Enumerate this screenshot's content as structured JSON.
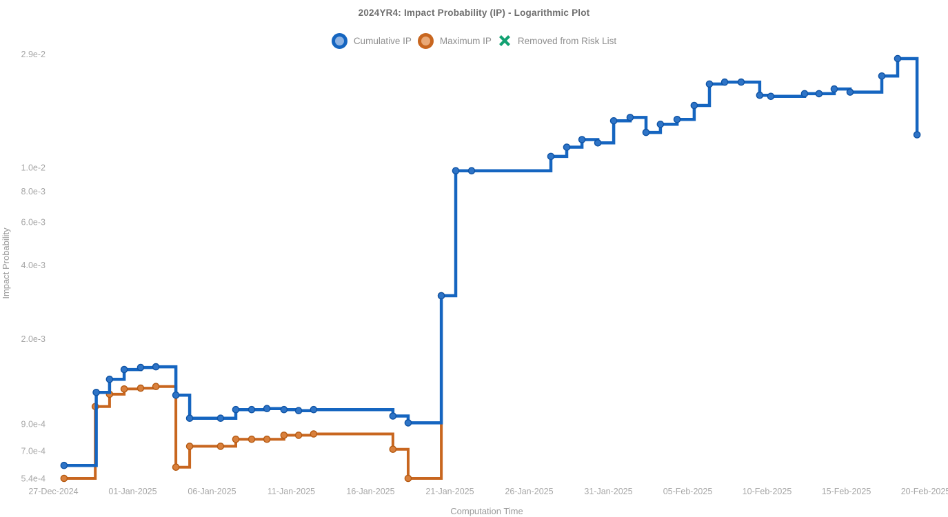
{
  "chart_data": {
    "type": "line",
    "title": "2024YR4: Impact Probability (IP) - Logarithmic Plot",
    "xlabel": "Computation Time",
    "ylabel": "Impact Probability",
    "yscale": "log",
    "step_style": "post",
    "grid": false,
    "background": "#ffffff",
    "ylim": [
      0.00054,
      0.029
    ],
    "legend_position": "top-center",
    "legend": [
      {
        "label": "Cumulative IP",
        "marker": "circle",
        "edge_color": "#1565c0",
        "fill_color": "#8fb3e2"
      },
      {
        "label": "Maximum IP",
        "marker": "circle",
        "edge_color": "#c8661f",
        "fill_color": "#e9a977"
      },
      {
        "label": "Removed from Risk List",
        "marker": "x",
        "edge_color": "#12a172",
        "fill_color": "#12a172"
      }
    ],
    "x_ticks": [
      {
        "label": "27-Dec-2024",
        "t": 0
      },
      {
        "label": "01-Jan-2025",
        "t": 5
      },
      {
        "label": "06-Jan-2025",
        "t": 10
      },
      {
        "label": "11-Jan-2025",
        "t": 15
      },
      {
        "label": "16-Jan-2025",
        "t": 20
      },
      {
        "label": "21-Jan-2025",
        "t": 25
      },
      {
        "label": "26-Jan-2025",
        "t": 30
      },
      {
        "label": "31-Jan-2025",
        "t": 35
      },
      {
        "label": "05-Feb-2025",
        "t": 40
      },
      {
        "label": "10-Feb-2025",
        "t": 45
      },
      {
        "label": "15-Feb-2025",
        "t": 50
      },
      {
        "label": "20-Feb-2025",
        "t": 55
      }
    ],
    "y_ticks": [
      {
        "label": "2.9e-2",
        "v": 0.029
      },
      {
        "label": "1.0e-2",
        "v": 0.01
      },
      {
        "label": "8.0e-3",
        "v": 0.008
      },
      {
        "label": "6.0e-3",
        "v": 0.006
      },
      {
        "label": "4.0e-3",
        "v": 0.004
      },
      {
        "label": "2.0e-3",
        "v": 0.002
      },
      {
        "label": "9.0e-4",
        "v": 0.0009
      },
      {
        "label": "7.0e-4",
        "v": 0.0007
      },
      {
        "label": "5.4e-4",
        "v": 0.00054
      }
    ],
    "series": [
      {
        "name": "Cumulative IP",
        "line_color": "#1565c0",
        "line_width": 4.5,
        "marker_fill": "#2e74c7",
        "marker_edge": "#0f53a4",
        "points": [
          {
            "date": "27-Dec-2024",
            "t": 0.67,
            "ip": 0.00061
          },
          {
            "date": "29-Dec-2024",
            "t": 2.7,
            "ip": 0.00121
          },
          {
            "date": "30-Dec-2024",
            "t": 3.54,
            "ip": 0.00137
          },
          {
            "date": "31-Dec-2024",
            "t": 4.46,
            "ip": 0.0015
          },
          {
            "date": "01-Jan-2025",
            "t": 5.5,
            "ip": 0.00153
          },
          {
            "date": "02-Jan-2025",
            "t": 6.46,
            "ip": 0.00154
          },
          {
            "date": "03-Jan-2025",
            "t": 7.72,
            "ip": 0.00118
          },
          {
            "date": "04-Jan-2025",
            "t": 8.59,
            "ip": 0.00095
          },
          {
            "date": "06-Jan-2025",
            "t": 10.54,
            "ip": 0.00095
          },
          {
            "date": "07-Jan-2025",
            "t": 11.5,
            "ip": 0.00103
          },
          {
            "date": "08-Jan-2025",
            "t": 12.5,
            "ip": 0.00103
          },
          {
            "date": "09-Jan-2025",
            "t": 13.46,
            "ip": 0.00104
          },
          {
            "date": "10-Jan-2025",
            "t": 14.54,
            "ip": 0.00103
          },
          {
            "date": "11-Jan-2025",
            "t": 15.46,
            "ip": 0.00102
          },
          {
            "date": "12-Jan-2025",
            "t": 16.41,
            "ip": 0.00103
          },
          {
            "date": "17-Jan-2025",
            "t": 21.41,
            "ip": 0.00097
          },
          {
            "date": "18-Jan-2025",
            "t": 22.37,
            "ip": 0.00091
          },
          {
            "date": "20-Jan-2025",
            "t": 24.46,
            "ip": 0.003
          },
          {
            "date": "21-Jan-2025",
            "t": 25.37,
            "ip": 0.0097
          },
          {
            "date": "22-Jan-2025",
            "t": 26.37,
            "ip": 0.0097
          },
          {
            "date": "27-Jan-2025",
            "t": 31.37,
            "ip": 0.0111
          },
          {
            "date": "28-Jan-2025",
            "t": 32.37,
            "ip": 0.0121
          },
          {
            "date": "29-Jan-2025",
            "t": 33.33,
            "ip": 0.013
          },
          {
            "date": "30-Jan-2025",
            "t": 34.33,
            "ip": 0.0126
          },
          {
            "date": "31-Jan-2025",
            "t": 35.33,
            "ip": 0.0155
          },
          {
            "date": "01-Feb-2025",
            "t": 36.37,
            "ip": 0.016
          },
          {
            "date": "02-Feb-2025",
            "t": 37.37,
            "ip": 0.0139
          },
          {
            "date": "03-Feb-2025",
            "t": 38.28,
            "ip": 0.015
          },
          {
            "date": "04-Feb-2025",
            "t": 39.33,
            "ip": 0.0157
          },
          {
            "date": "05-Feb-2025",
            "t": 40.41,
            "ip": 0.0179
          },
          {
            "date": "06-Feb-2025",
            "t": 41.37,
            "ip": 0.0219
          },
          {
            "date": "07-Feb-2025",
            "t": 42.33,
            "ip": 0.0223
          },
          {
            "date": "08-Feb-2025",
            "t": 43.37,
            "ip": 0.0223
          },
          {
            "date": "09-Feb-2025",
            "t": 44.54,
            "ip": 0.0197
          },
          {
            "date": "10-Feb-2025",
            "t": 45.24,
            "ip": 0.0195
          },
          {
            "date": "12-Feb-2025",
            "t": 47.37,
            "ip": 0.02
          },
          {
            "date": "13-Feb-2025",
            "t": 48.28,
            "ip": 0.02
          },
          {
            "date": "14-Feb-2025",
            "t": 49.24,
            "ip": 0.0209
          },
          {
            "date": "15-Feb-2025",
            "t": 50.24,
            "ip": 0.0203
          },
          {
            "date": "17-Feb-2025",
            "t": 52.24,
            "ip": 0.0236
          },
          {
            "date": "18-Feb-2025",
            "t": 53.24,
            "ip": 0.0278
          },
          {
            "date": "19-Feb-2025",
            "t": 54.46,
            "ip": 0.0136
          }
        ]
      },
      {
        "name": "Maximum IP",
        "line_color": "#c8661f",
        "line_width": 4,
        "marker_fill": "#d9803c",
        "marker_edge": "#b55a12",
        "points": [
          {
            "date": "27-Dec-2024",
            "t": 0.67,
            "ip": 0.00054
          },
          {
            "date": "29-Dec-2024",
            "t": 2.64,
            "ip": 0.00106
          },
          {
            "date": "30-Dec-2024",
            "t": 3.54,
            "ip": 0.00119
          },
          {
            "date": "31-Dec-2024",
            "t": 4.46,
            "ip": 0.00125
          },
          {
            "date": "01-Jan-2025",
            "t": 5.5,
            "ip": 0.00126
          },
          {
            "date": "02-Jan-2025",
            "t": 6.46,
            "ip": 0.00128
          },
          {
            "date": "03-Jan-2025",
            "t": 7.72,
            "ip": 0.0006
          },
          {
            "date": "04-Jan-2025",
            "t": 8.59,
            "ip": 0.00073
          },
          {
            "date": "06-Jan-2025",
            "t": 10.54,
            "ip": 0.00073
          },
          {
            "date": "07-Jan-2025",
            "t": 11.5,
            "ip": 0.00078
          },
          {
            "date": "08-Jan-2025",
            "t": 12.5,
            "ip": 0.00078
          },
          {
            "date": "09-Jan-2025",
            "t": 13.46,
            "ip": 0.00078
          },
          {
            "date": "10-Jan-2025",
            "t": 14.54,
            "ip": 0.00081
          },
          {
            "date": "11-Jan-2025",
            "t": 15.46,
            "ip": 0.00081
          },
          {
            "date": "12-Jan-2025",
            "t": 16.41,
            "ip": 0.00082
          },
          {
            "date": "17-Jan-2025",
            "t": 21.41,
            "ip": 0.00071
          },
          {
            "date": "18-Jan-2025",
            "t": 22.37,
            "ip": 0.00054
          },
          {
            "date": "20-Jan-2025",
            "t": 24.46,
            "ip": 0.003
          }
        ]
      }
    ]
  }
}
